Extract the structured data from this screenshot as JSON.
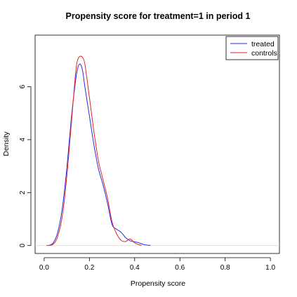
{
  "chart_data": {
    "type": "line",
    "title": "Propensity score for treatment=1 in period 1",
    "xlabel": "Propensity score",
    "ylabel": "Density",
    "xlim": [
      -0.04,
      1.04
    ],
    "ylim": [
      -0.3,
      7.95
    ],
    "x_ticks": [
      0.0,
      0.2,
      0.4,
      0.6,
      0.8,
      1.0
    ],
    "x_tick_labels": [
      "0.0",
      "0.2",
      "0.4",
      "0.6",
      "0.8",
      "1.0"
    ],
    "y_ticks": [
      0,
      2,
      4,
      6
    ],
    "y_tick_labels": [
      "0",
      "2",
      "4",
      "6"
    ],
    "grid": false,
    "legend_position": "top-right",
    "baseline_color": "#dcdcdc",
    "series": [
      {
        "name": "treated",
        "color": "#2a2ae6",
        "x": [
          0.02,
          0.04,
          0.06,
          0.08,
          0.1,
          0.12,
          0.14,
          0.15,
          0.16,
          0.17,
          0.18,
          0.2,
          0.22,
          0.24,
          0.26,
          0.28,
          0.3,
          0.32,
          0.34,
          0.36,
          0.38,
          0.4,
          0.42,
          0.44,
          0.47
        ],
        "y": [
          0.0,
          0.1,
          0.5,
          1.4,
          2.9,
          4.8,
          6.3,
          6.75,
          6.85,
          6.6,
          6.0,
          4.9,
          3.8,
          2.9,
          2.3,
          1.6,
          0.8,
          0.62,
          0.5,
          0.3,
          0.18,
          0.14,
          0.1,
          0.04,
          0.0
        ]
      },
      {
        "name": "controls",
        "color": "#e6232a",
        "x": [
          0.01,
          0.04,
          0.06,
          0.08,
          0.1,
          0.12,
          0.14,
          0.15,
          0.16,
          0.17,
          0.18,
          0.2,
          0.22,
          0.24,
          0.26,
          0.28,
          0.3,
          0.32,
          0.34,
          0.36,
          0.38,
          0.4,
          0.43
        ],
        "y": [
          0.0,
          0.05,
          0.35,
          1.1,
          2.6,
          4.6,
          6.6,
          7.05,
          7.15,
          7.1,
          6.85,
          5.6,
          4.3,
          3.2,
          2.5,
          1.8,
          0.9,
          0.45,
          0.2,
          0.15,
          0.25,
          0.1,
          0.0
        ]
      }
    ]
  }
}
